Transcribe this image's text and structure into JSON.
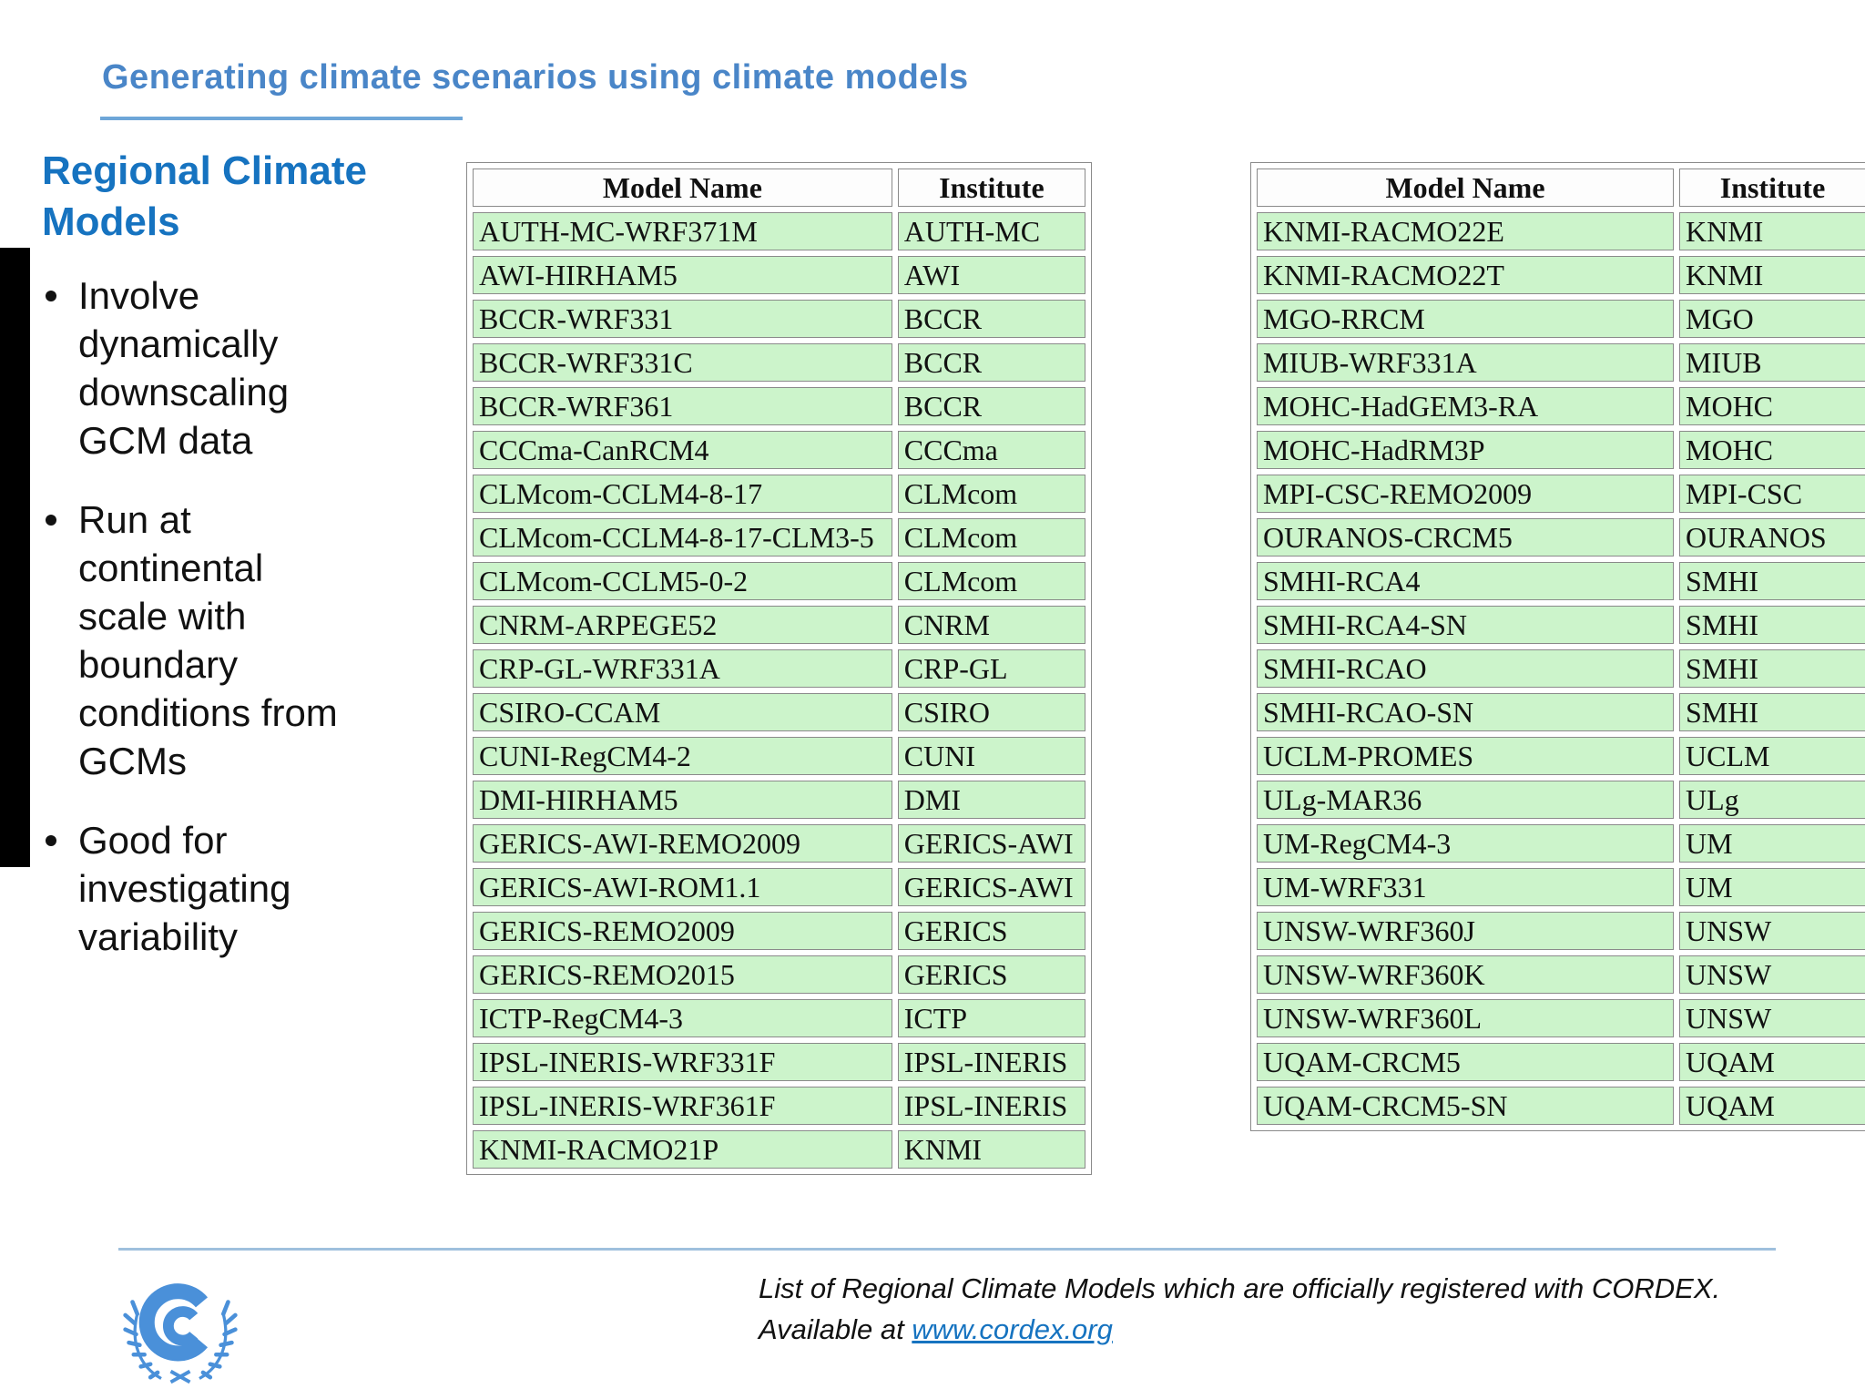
{
  "title": "Generating climate scenarios using climate models",
  "sidebar": {
    "heading": "Regional Climate Models",
    "bullets": [
      "Involve dynamically downscaling GCM data",
      "Run at continental scale with boundary conditions from GCMs",
      "Good for investigating variability"
    ]
  },
  "tables": {
    "columns": [
      "Model Name",
      "Institute"
    ],
    "left": {
      "rows": [
        [
          "AUTH-MC-WRF371M",
          "AUTH-MC"
        ],
        [
          "AWI-HIRHAM5",
          "AWI"
        ],
        [
          "BCCR-WRF331",
          "BCCR"
        ],
        [
          "BCCR-WRF331C",
          "BCCR"
        ],
        [
          "BCCR-WRF361",
          "BCCR"
        ],
        [
          "CCCma-CanRCM4",
          "CCCma"
        ],
        [
          "CLMcom-CCLM4-8-17",
          "CLMcom"
        ],
        [
          "CLMcom-CCLM4-8-17-CLM3-5",
          "CLMcom"
        ],
        [
          "CLMcom-CCLM5-0-2",
          "CLMcom"
        ],
        [
          "CNRM-ARPEGE52",
          "CNRM"
        ],
        [
          "CRP-GL-WRF331A",
          "CRP-GL"
        ],
        [
          "CSIRO-CCAM",
          "CSIRO"
        ],
        [
          "CUNI-RegCM4-2",
          "CUNI"
        ],
        [
          "DMI-HIRHAM5",
          "DMI"
        ],
        [
          "GERICS-AWI-REMO2009",
          "GERICS-AWI"
        ],
        [
          "GERICS-AWI-ROM1.1",
          "GERICS-AWI"
        ],
        [
          "GERICS-REMO2009",
          "GERICS"
        ],
        [
          "GERICS-REMO2015",
          "GERICS"
        ],
        [
          "ICTP-RegCM4-3",
          "ICTP"
        ],
        [
          "IPSL-INERIS-WRF331F",
          "IPSL-INERIS"
        ],
        [
          "IPSL-INERIS-WRF361F",
          "IPSL-INERIS"
        ],
        [
          "KNMI-RACMO21P",
          "KNMI"
        ]
      ]
    },
    "right": {
      "rows": [
        [
          "KNMI-RACMO22E",
          "KNMI"
        ],
        [
          "KNMI-RACMO22T",
          "KNMI"
        ],
        [
          "MGO-RRCM",
          "MGO"
        ],
        [
          "MIUB-WRF331A",
          "MIUB"
        ],
        [
          "MOHC-HadGEM3-RA",
          "MOHC"
        ],
        [
          "MOHC-HadRM3P",
          "MOHC"
        ],
        [
          "MPI-CSC-REMO2009",
          "MPI-CSC"
        ],
        [
          "OURANOS-CRCM5",
          "OURANOS"
        ],
        [
          "SMHI-RCA4",
          "SMHI"
        ],
        [
          "SMHI-RCA4-SN",
          "SMHI"
        ],
        [
          "SMHI-RCAO",
          "SMHI"
        ],
        [
          "SMHI-RCAO-SN",
          "SMHI"
        ],
        [
          "UCLM-PROMES",
          "UCLM"
        ],
        [
          "ULg-MAR36",
          "ULg"
        ],
        [
          "UM-RegCM4-3",
          "UM"
        ],
        [
          "UM-WRF331",
          "UM"
        ],
        [
          "UNSW-WRF360J",
          "UNSW"
        ],
        [
          "UNSW-WRF360K",
          "UNSW"
        ],
        [
          "UNSW-WRF360L",
          "UNSW"
        ],
        [
          "UQAM-CRCM5",
          "UQAM"
        ],
        [
          "UQAM-CRCM5-SN",
          "UQAM"
        ]
      ]
    }
  },
  "caption": {
    "line1": "List of Regional Climate Models which are officially registered with CORDEX.",
    "line2_prefix": "Available at ",
    "link_text": "www.cordex.org"
  },
  "logo": {
    "name": "unfccc-logo"
  },
  "colors": {
    "title_blue": "#4a86c8",
    "heading_blue": "#1673c0",
    "table_green": "#ccf4cb",
    "cell_border_gray": "#8a8a8a",
    "link_blue": "#1673c0",
    "divider_light_blue": "#9fc0dd",
    "logo_blue": "#4a90d9",
    "black_bar": "#000000"
  }
}
